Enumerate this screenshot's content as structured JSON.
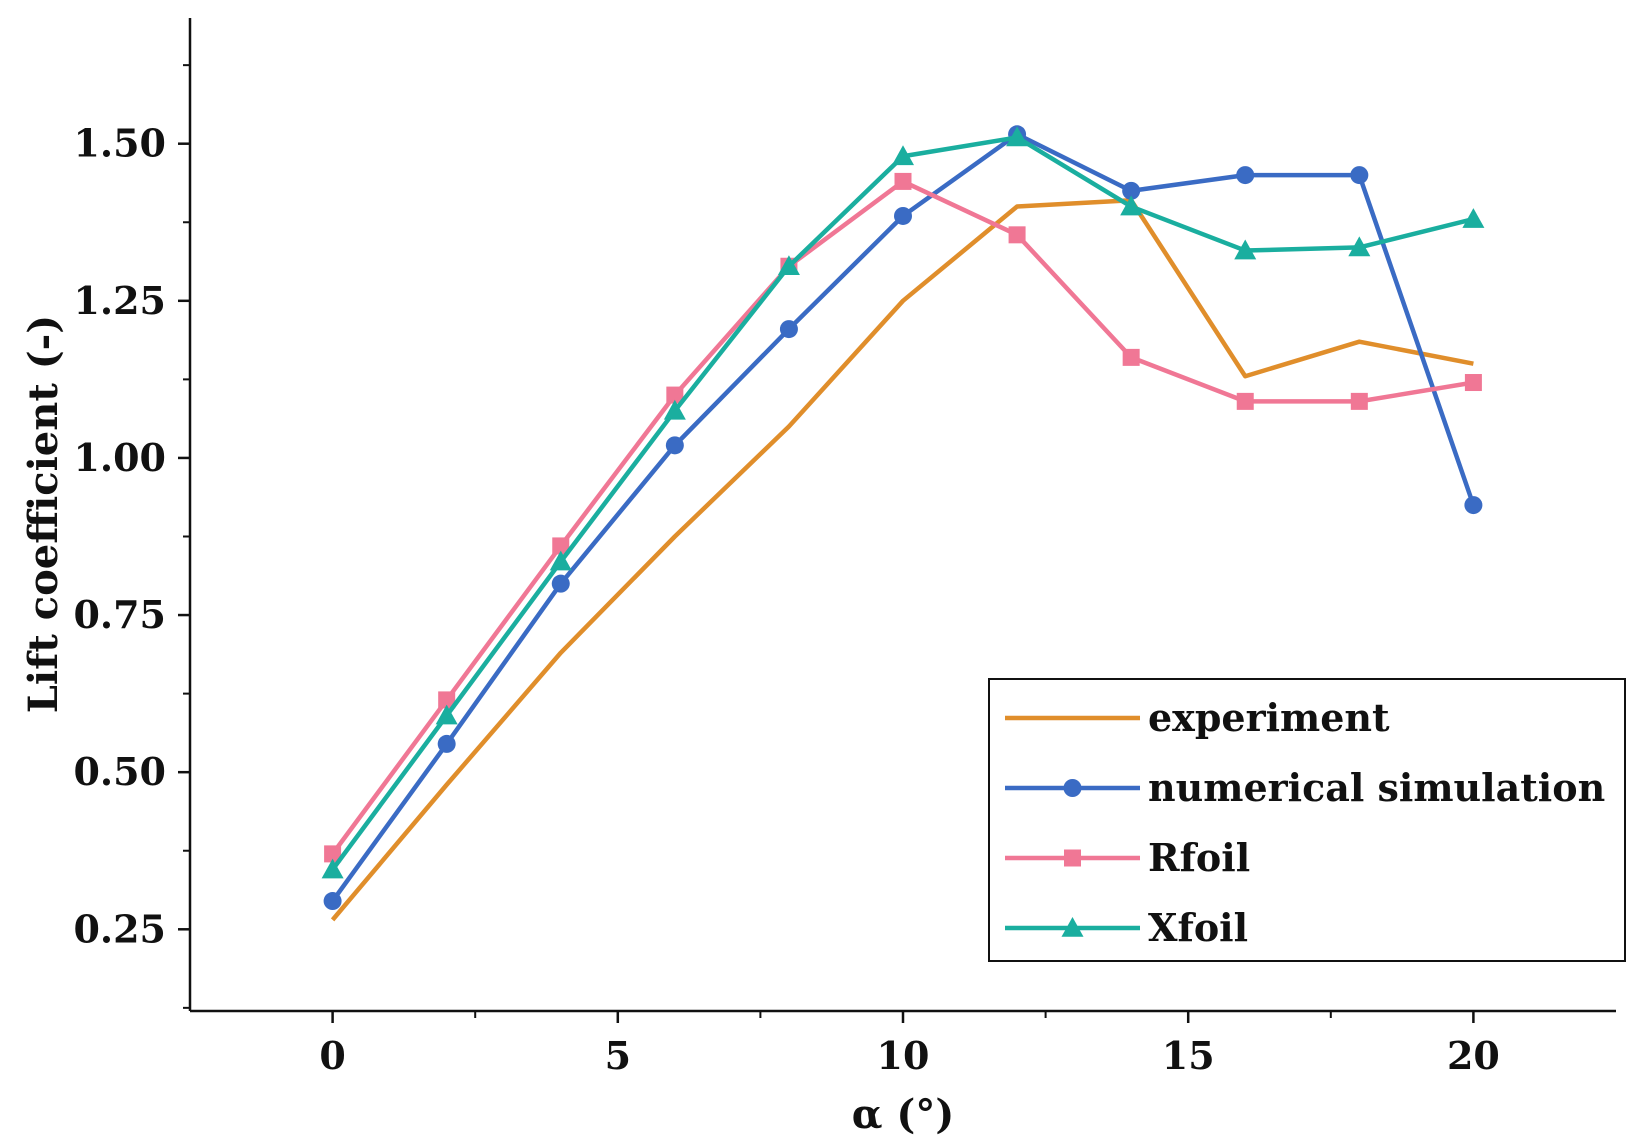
{
  "chart_data": {
    "type": "line",
    "title": "",
    "xlabel": "α (°)",
    "ylabel": "Lift coefficient (-)",
    "xlim": [
      -2.5,
      22.5
    ],
    "ylim": [
      0.12,
      1.7
    ],
    "xticks": [
      0,
      5,
      10,
      15,
      20
    ],
    "xtick_labels": [
      "0",
      "5",
      "10",
      "15",
      "20"
    ],
    "yticks": [
      0.25,
      0.5,
      0.75,
      1.0,
      1.25,
      1.5
    ],
    "ytick_labels": [
      "0.25",
      "0.50",
      "0.75",
      "1.00",
      "1.25",
      "1.50"
    ],
    "grid": false,
    "legend_position": "bottom-right",
    "series": [
      {
        "name": "experiment",
        "color": "#E08E2B",
        "marker": "none",
        "x": [
          0,
          2,
          4,
          6,
          8,
          10,
          12,
          14,
          16,
          18,
          20
        ],
        "values": [
          0.265,
          0.48,
          0.69,
          0.875,
          1.05,
          1.25,
          1.4,
          1.41,
          1.13,
          1.185,
          1.15
        ]
      },
      {
        "name": "numerical simulation",
        "color": "#3A6BC4",
        "marker": "circle",
        "x": [
          0,
          2,
          4,
          6,
          8,
          10,
          12,
          14,
          16,
          18,
          20
        ],
        "values": [
          0.295,
          0.545,
          0.8,
          1.02,
          1.205,
          1.385,
          1.515,
          1.425,
          1.45,
          1.45,
          0.925
        ]
      },
      {
        "name": "Rfoil",
        "color": "#F07795",
        "marker": "square",
        "x": [
          0,
          2,
          4,
          6,
          8,
          10,
          12,
          14,
          16,
          18,
          20
        ],
        "values": [
          0.37,
          0.615,
          0.86,
          1.1,
          1.305,
          1.44,
          1.355,
          1.16,
          1.09,
          1.09,
          1.12
        ]
      },
      {
        "name": "Xfoil",
        "color": "#1AAE9F",
        "marker": "triangle",
        "x": [
          0,
          2,
          4,
          6,
          8,
          10,
          12,
          14,
          16,
          18,
          20
        ],
        "values": [
          0.345,
          0.59,
          0.835,
          1.075,
          1.305,
          1.48,
          1.51,
          1.4,
          1.33,
          1.335,
          1.38
        ]
      }
    ]
  }
}
